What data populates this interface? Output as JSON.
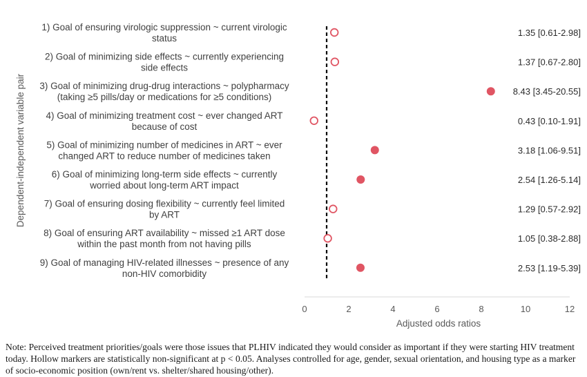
{
  "chart_data": {
    "type": "scatter",
    "xlabel": "Adjusted odds ratios",
    "ylabel": "Dependent-independent variable pair",
    "xlim": [
      0,
      12
    ],
    "xticks": [
      0,
      2,
      4,
      6,
      8,
      10,
      12
    ],
    "reference_line": 1,
    "significant_color": "#e05563",
    "categories": [
      {
        "label_lines": [
          "1) Goal of ensuring virologic suppression ~ current virologic",
          "status"
        ],
        "value": 1.35,
        "ci_text": "1.35 [0.61-2.98]",
        "significant": false
      },
      {
        "label_lines": [
          "2) Goal of minimizing side effects ~ currently experiencing",
          "side effects"
        ],
        "value": 1.37,
        "ci_text": "1.37 [0.67-2.80]",
        "significant": false
      },
      {
        "label_lines": [
          "3) Goal of minimizing drug-drug interactions ~ polypharmacy",
          "(taking ≥5 pills/day or medications for ≥5 conditions)"
        ],
        "value": 8.43,
        "ci_text": "8.43 [3.45-20.55]",
        "significant": true
      },
      {
        "label_lines": [
          "4) Goal of minimizing treatment cost ~ ever changed ART",
          "because of cost"
        ],
        "value": 0.43,
        "ci_text": "0.43 [0.10-1.91]",
        "significant": false
      },
      {
        "label_lines": [
          "5) Goal of minimizing number of medicines in ART ~ ever",
          "changed ART to reduce number of medicines taken"
        ],
        "value": 3.18,
        "ci_text": "3.18 [1.06-9.51]",
        "significant": true
      },
      {
        "label_lines": [
          "6) Goal of minimizing long-term side effects ~ currently",
          "worried about long-term ART impact"
        ],
        "value": 2.54,
        "ci_text": "2.54 [1.26-5.14]",
        "significant": true
      },
      {
        "label_lines": [
          "7) Goal of ensuring dosing flexibility ~ currently feel limited",
          "by ART"
        ],
        "value": 1.29,
        "ci_text": "1.29 [0.57-2.92]",
        "significant": false
      },
      {
        "label_lines": [
          "8) Goal of ensuring ART availability ~ missed ≥1 ART dose",
          "within the past month from not having pills"
        ],
        "value": 1.05,
        "ci_text": "1.05 [0.38-2.88]",
        "significant": false
      },
      {
        "label_lines": [
          "9) Goal of managing HIV-related illnesses ~ presence of any",
          "non-HIV comorbidity"
        ],
        "value": 2.53,
        "ci_text": "2.53 [1.19-5.39]",
        "significant": true
      }
    ]
  },
  "note": "Note: Perceived treatment priorities/goals were those issues that PLHIV indicated they would consider as important if they were starting HIV treatment today. Hollow markers are statistically non-significant at p < 0.05. Analyses controlled for age, gender, sexual orientation, and housing type as a marker of socio-economic position (own/rent vs. shelter/shared housing/other)."
}
